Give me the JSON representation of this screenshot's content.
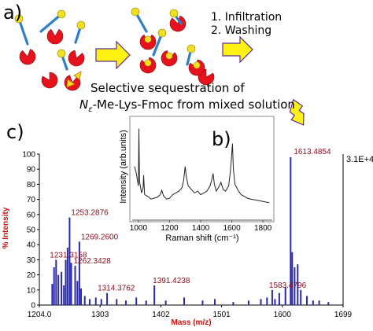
{
  "panel_a": {
    "label": "a)",
    "steps": [
      "1. Infiltration",
      "2. Washing"
    ],
    "caption_line1": "Selective sequestration of",
    "caption_line2_prefix": "N",
    "caption_line2_sub": "ε",
    "caption_line2_suffix": "-Me-Lys-Fmoc from mixed solution",
    "colors": {
      "cage": "#e8121c",
      "ball": "#f0e020",
      "stick": "#2f7fc8",
      "arrow_fill": "#fff212",
      "arrow_edge": "#5a2ca0"
    }
  },
  "panel_b": {
    "label": "b)",
    "chart_data": {
      "type": "line",
      "xlabel": "Raman shift (cm⁻¹)",
      "ylabel": "Intensity (arb.units)",
      "xlim": [
        970,
        1850
      ],
      "x_ticks": [
        "1000",
        "1200",
        "1400",
        "1600",
        "1800"
      ],
      "series": [
        {
          "points": [
            [
              975,
              0.52
            ],
            [
              985,
              0.45
            ],
            [
              990,
              0.4
            ],
            [
              1000,
              0.3
            ],
            [
              1003,
              0.95
            ],
            [
              1007,
              0.35
            ],
            [
              1020,
              0.22
            ],
            [
              1030,
              0.28
            ],
            [
              1033,
              0.42
            ],
            [
              1040,
              0.2
            ],
            [
              1060,
              0.18
            ],
            [
              1080,
              0.15
            ],
            [
              1100,
              0.16
            ],
            [
              1120,
              0.17
            ],
            [
              1140,
              0.2
            ],
            [
              1150,
              0.25
            ],
            [
              1160,
              0.19
            ],
            [
              1180,
              0.15
            ],
            [
              1200,
              0.16
            ],
            [
              1220,
              0.2
            ],
            [
              1240,
              0.22
            ],
            [
              1260,
              0.24
            ],
            [
              1280,
              0.28
            ],
            [
              1290,
              0.36
            ],
            [
              1300,
              0.52
            ],
            [
              1308,
              0.4
            ],
            [
              1320,
              0.3
            ],
            [
              1340,
              0.26
            ],
            [
              1360,
              0.22
            ],
            [
              1380,
              0.24
            ],
            [
              1400,
              0.2
            ],
            [
              1420,
              0.22
            ],
            [
              1440,
              0.24
            ],
            [
              1460,
              0.3
            ],
            [
              1470,
              0.36
            ],
            [
              1480,
              0.44
            ],
            [
              1488,
              0.32
            ],
            [
              1500,
              0.24
            ],
            [
              1520,
              0.3
            ],
            [
              1530,
              0.34
            ],
            [
              1545,
              0.26
            ],
            [
              1560,
              0.24
            ],
            [
              1580,
              0.3
            ],
            [
              1590,
              0.45
            ],
            [
              1598,
              0.62
            ],
            [
              1604,
              0.78
            ],
            [
              1610,
              0.5
            ],
            [
              1620,
              0.32
            ],
            [
              1640,
              0.25
            ],
            [
              1660,
              0.2
            ],
            [
              1680,
              0.18
            ],
            [
              1700,
              0.16
            ],
            [
              1720,
              0.15
            ],
            [
              1750,
              0.14
            ],
            [
              1780,
              0.13
            ],
            [
              1810,
              0.12
            ],
            [
              1840,
              0.11
            ]
          ]
        }
      ]
    }
  },
  "panel_c": {
    "label": "c)",
    "chart_data": {
      "type": "bar",
      "xlabel": "Mass (m/z)",
      "ylabel": "% Intensity",
      "xlim": [
        1204,
        1699
      ],
      "ylim": [
        0,
        100
      ],
      "x_ticks": [
        "1204.0",
        "1303",
        "1402",
        "1501",
        "1600",
        "1699"
      ],
      "y_ticks": [
        "0",
        "10",
        "20",
        "30",
        "40",
        "50",
        "60",
        "70",
        "80",
        "90",
        "100"
      ],
      "intensity_max": "3.1E+4",
      "peaks": [
        {
          "mz": 1225,
          "i": 14
        },
        {
          "mz": 1228,
          "i": 25
        },
        {
          "mz": 1231.3158,
          "i": 30,
          "label": "1231.3158"
        },
        {
          "mz": 1235,
          "i": 20
        },
        {
          "mz": 1240,
          "i": 22
        },
        {
          "mz": 1244,
          "i": 13
        },
        {
          "mz": 1247,
          "i": 30
        },
        {
          "mz": 1250,
          "i": 38
        },
        {
          "mz": 1253.2876,
          "i": 58,
          "label": "1253.2876"
        },
        {
          "mz": 1256,
          "i": 28
        },
        {
          "mz": 1262.3428,
          "i": 26,
          "label": "1262.3428"
        },
        {
          "mz": 1266,
          "i": 16
        },
        {
          "mz": 1269.26,
          "i": 42,
          "label": "1269.2600"
        },
        {
          "mz": 1272,
          "i": 11
        },
        {
          "mz": 1278,
          "i": 6
        },
        {
          "mz": 1286,
          "i": 4
        },
        {
          "mz": 1296,
          "i": 5
        },
        {
          "mz": 1305,
          "i": 4
        },
        {
          "mz": 1314.3762,
          "i": 8,
          "label": "1314.3762"
        },
        {
          "mz": 1330,
          "i": 4
        },
        {
          "mz": 1345,
          "i": 3
        },
        {
          "mz": 1362,
          "i": 5
        },
        {
          "mz": 1378,
          "i": 3
        },
        {
          "mz": 1391.4238,
          "i": 13,
          "label": "1391.4238"
        },
        {
          "mz": 1410,
          "i": 3
        },
        {
          "mz": 1440,
          "i": 5
        },
        {
          "mz": 1470,
          "i": 3
        },
        {
          "mz": 1490,
          "i": 4
        },
        {
          "mz": 1520,
          "i": 2
        },
        {
          "mz": 1545,
          "i": 3
        },
        {
          "mz": 1565,
          "i": 4
        },
        {
          "mz": 1575,
          "i": 5
        },
        {
          "mz": 1583.4796,
          "i": 10,
          "label": "1583.4796"
        },
        {
          "mz": 1588,
          "i": 4
        },
        {
          "mz": 1595,
          "i": 8
        },
        {
          "mz": 1605,
          "i": 12
        },
        {
          "mz": 1613.4854,
          "i": 98,
          "label": "1613.4854"
        },
        {
          "mz": 1616,
          "i": 35
        },
        {
          "mz": 1620,
          "i": 25
        },
        {
          "mz": 1625,
          "i": 27
        },
        {
          "mz": 1630,
          "i": 10
        },
        {
          "mz": 1640,
          "i": 6
        },
        {
          "mz": 1650,
          "i": 3
        },
        {
          "mz": 1660,
          "i": 3
        },
        {
          "mz": 1675,
          "i": 2
        }
      ],
      "colors": {
        "bars": "#2a2aa8",
        "labels": "#8a1020",
        "axis_title": "#cc1010"
      }
    }
  }
}
